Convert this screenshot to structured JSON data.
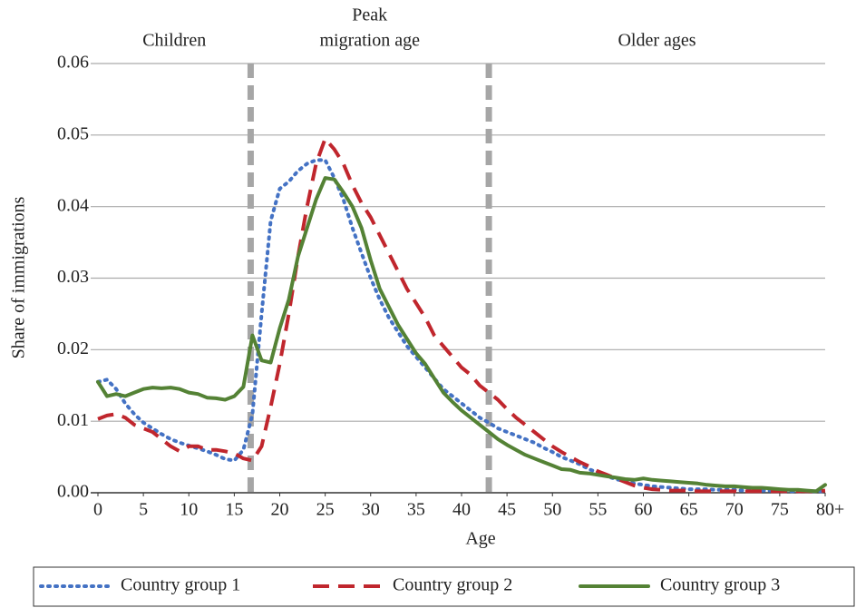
{
  "chart_data": {
    "type": "line",
    "x_label": "Age",
    "y_label": "Share of immigrations",
    "xlim": [
      0,
      80
    ],
    "ylim": [
      0,
      0.06
    ],
    "xticks": [
      0,
      5,
      10,
      15,
      20,
      25,
      30,
      35,
      40,
      45,
      50,
      55,
      60,
      65,
      70,
      75,
      {
        "value": 80,
        "label": "80+"
      }
    ],
    "yticks": [
      {
        "value": 0,
        "label": "0.00"
      },
      0.01,
      0.02,
      0.03,
      0.04,
      0.05,
      0.06
    ],
    "grid": true,
    "dividers": [
      16.8,
      43
    ],
    "regions": [
      {
        "lines": [
          "Children"
        ]
      },
      {
        "lines": [
          "Peak",
          "migration age"
        ]
      },
      {
        "lines": [
          "Older ages"
        ]
      }
    ],
    "legend_position": "bottom",
    "x": [
      0,
      1,
      2,
      3,
      4,
      5,
      6,
      7,
      8,
      9,
      10,
      11,
      12,
      13,
      14,
      15,
      16,
      17,
      18,
      19,
      20,
      21,
      22,
      23,
      24,
      25,
      26,
      27,
      28,
      29,
      30,
      31,
      32,
      33,
      34,
      35,
      36,
      37,
      38,
      39,
      40,
      41,
      42,
      43,
      44,
      45,
      46,
      47,
      48,
      49,
      50,
      51,
      52,
      53,
      54,
      55,
      56,
      57,
      58,
      59,
      60,
      61,
      62,
      63,
      64,
      65,
      66,
      67,
      68,
      69,
      70,
      71,
      72,
      73,
      74,
      75,
      76,
      77,
      78,
      79,
      80
    ],
    "series": [
      {
        "name": "Country group 1",
        "color": "#4472c4",
        "line_style": "dotted",
        "values": [
          0.0155,
          0.0158,
          0.0145,
          0.0125,
          0.011,
          0.0098,
          0.009,
          0.0082,
          0.0075,
          0.007,
          0.0066,
          0.0062,
          0.0058,
          0.0053,
          0.0047,
          0.0045,
          0.006,
          0.011,
          0.025,
          0.038,
          0.0425,
          0.0435,
          0.045,
          0.046,
          0.0465,
          0.0465,
          0.044,
          0.041,
          0.037,
          0.0335,
          0.03,
          0.027,
          0.0245,
          0.0225,
          0.0205,
          0.019,
          0.0175,
          0.016,
          0.0145,
          0.0135,
          0.0125,
          0.0115,
          0.0105,
          0.0098,
          0.009,
          0.0085,
          0.008,
          0.0075,
          0.007,
          0.0063,
          0.0057,
          0.005,
          0.0045,
          0.004,
          0.0033,
          0.0028,
          0.0023,
          0.0019,
          0.0016,
          0.0013,
          0.0011,
          0.0009,
          0.0008,
          0.0007,
          0.0006,
          0.0005,
          0.0005,
          0.0005,
          0.0004,
          0.0004,
          0.0004,
          0.0003,
          0.0003,
          0.0003,
          0.0003,
          0.0002,
          0.0002,
          0.0002,
          0.0002,
          0.0002,
          0.0002
        ]
      },
      {
        "name": "Country group 2",
        "color": "#c0262d",
        "line_style": "dashed",
        "values": [
          0.0103,
          0.0108,
          0.011,
          0.0105,
          0.0095,
          0.009,
          0.0085,
          0.0075,
          0.0065,
          0.0058,
          0.0065,
          0.0065,
          0.006,
          0.006,
          0.0058,
          0.0055,
          0.0048,
          0.0045,
          0.0065,
          0.012,
          0.018,
          0.025,
          0.033,
          0.04,
          0.046,
          0.0495,
          0.048,
          0.046,
          0.043,
          0.0405,
          0.0385,
          0.036,
          0.0335,
          0.031,
          0.0285,
          0.0265,
          0.0245,
          0.022,
          0.0205,
          0.019,
          0.0175,
          0.0165,
          0.015,
          0.014,
          0.013,
          0.0117,
          0.0105,
          0.0095,
          0.0085,
          0.0075,
          0.0065,
          0.0057,
          0.005,
          0.0043,
          0.0037,
          0.003,
          0.0025,
          0.002,
          0.0015,
          0.001,
          0.0007,
          0.0005,
          0.0004,
          0.0003,
          0.0003,
          0.0003,
          0.0002,
          0.0002,
          0.0002,
          0.0002,
          0.0002,
          0.0002,
          0.0002,
          0.0002,
          0.0002,
          0.0002,
          0.0002,
          0.0002,
          0.0002,
          0.0002,
          0.0003
        ]
      },
      {
        "name": "Country group 3",
        "color": "#548235",
        "line_style": "solid",
        "values": [
          0.0155,
          0.0135,
          0.0138,
          0.0135,
          0.014,
          0.0145,
          0.0147,
          0.0146,
          0.0147,
          0.0145,
          0.014,
          0.0138,
          0.0133,
          0.0132,
          0.013,
          0.0135,
          0.0148,
          0.022,
          0.0185,
          0.0182,
          0.023,
          0.027,
          0.033,
          0.037,
          0.041,
          0.044,
          0.0438,
          0.042,
          0.04,
          0.037,
          0.0325,
          0.0285,
          0.026,
          0.0235,
          0.0215,
          0.0195,
          0.018,
          0.016,
          0.014,
          0.0127,
          0.0115,
          0.0105,
          0.0095,
          0.0085,
          0.0075,
          0.0067,
          0.006,
          0.0053,
          0.0048,
          0.0043,
          0.0038,
          0.0033,
          0.0032,
          0.0028,
          0.0027,
          0.0025,
          0.0023,
          0.0021,
          0.0019,
          0.0018,
          0.002,
          0.0018,
          0.0017,
          0.0016,
          0.0015,
          0.0014,
          0.0013,
          0.0011,
          0.001,
          0.0009,
          0.0009,
          0.0008,
          0.0007,
          0.0007,
          0.0006,
          0.0005,
          0.0004,
          0.0004,
          0.0003,
          0.0002,
          0.0011
        ]
      }
    ]
  }
}
